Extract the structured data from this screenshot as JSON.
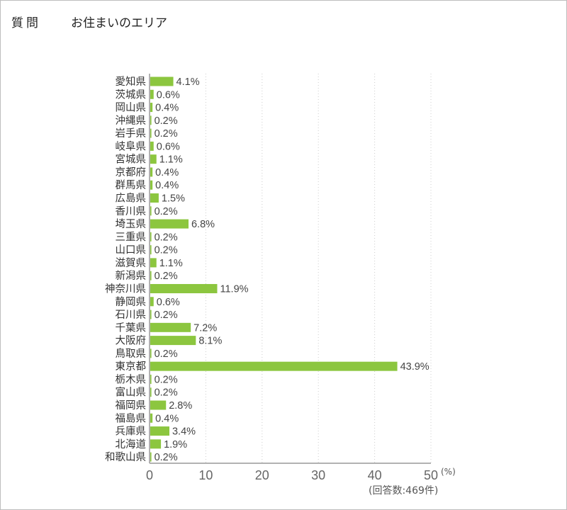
{
  "header": {
    "question_label": "質問",
    "question_text": "お住まいのエリア"
  },
  "colors": {
    "bar": "#8cc63f",
    "grid": "#cccccc",
    "axis": "#999999"
  },
  "chart_data": {
    "type": "bar",
    "orientation": "horizontal",
    "categories": [
      "愛知県",
      "茨城県",
      "岡山県",
      "沖縄県",
      "岩手県",
      "岐阜県",
      "宮城県",
      "京都府",
      "群馬県",
      "広島県",
      "香川県",
      "埼玉県",
      "三重県",
      "山口県",
      "滋賀県",
      "新潟県",
      "神奈川県",
      "静岡県",
      "石川県",
      "千葉県",
      "大阪府",
      "鳥取県",
      "東京都",
      "栃木県",
      "富山県",
      "福岡県",
      "福島県",
      "兵庫県",
      "北海道",
      "和歌山県"
    ],
    "values": [
      4.1,
      0.6,
      0.4,
      0.2,
      0.2,
      0.6,
      1.1,
      0.4,
      0.4,
      1.5,
      0.2,
      6.8,
      0.2,
      0.2,
      1.1,
      0.2,
      11.9,
      0.6,
      0.2,
      7.2,
      8.1,
      0.2,
      43.9,
      0.2,
      0.2,
      2.8,
      0.4,
      3.4,
      1.9,
      0.2
    ],
    "value_labels": [
      "4.1%",
      "0.6%",
      "0.4%",
      "0.2%",
      "0.2%",
      "0.6%",
      "1.1%",
      "0.4%",
      "0.4%",
      "1.5%",
      "0.2%",
      "6.8%",
      "0.2%",
      "0.2%",
      "1.1%",
      "0.2%",
      "11.9%",
      "0.6%",
      "0.2%",
      "7.2%",
      "8.1%",
      "0.2%",
      "43.9%",
      "0.2%",
      "0.2%",
      "2.8%",
      "0.4%",
      "3.4%",
      "1.9%",
      "0.2%"
    ],
    "xlim": [
      0,
      50
    ],
    "xticks": [
      "0",
      "10",
      "20",
      "30",
      "40",
      "50"
    ],
    "x_unit": "(%)",
    "grid": true,
    "note": "(回答数:469件)"
  }
}
